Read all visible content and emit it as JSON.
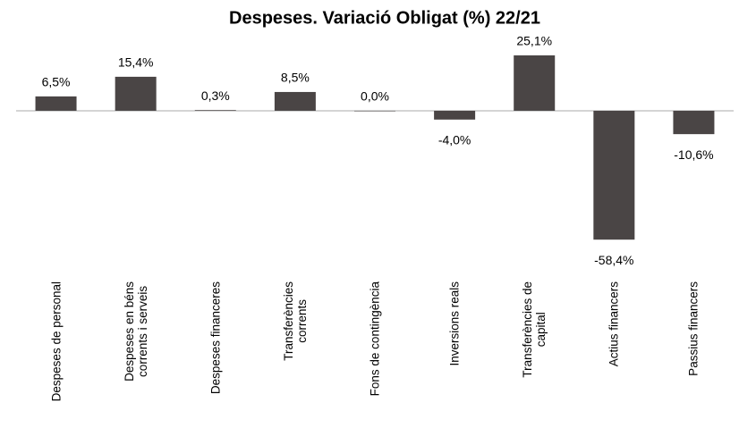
{
  "chart_data": {
    "type": "bar",
    "title": "Despeses. Variació Obligat (%)  22/21",
    "categories": [
      "Despeses de personal",
      "Despeses en béns\ncorrents i serveis",
      "Despeses financeres",
      "Transferències\ncorrents",
      "Fons de contingència",
      "Inversions reals",
      "Transferències de\ncapital",
      "Actius financers",
      "Passius financers"
    ],
    "values": [
      6.5,
      15.4,
      0.3,
      8.5,
      0.0,
      -4.0,
      25.1,
      -58.4,
      -10.6
    ],
    "value_labels": [
      "6,5%",
      "15,4%",
      "0,3%",
      "8,5%",
      "0,0%",
      "-4,0%",
      "25,1%",
      "-58,4%",
      "-10,6%"
    ],
    "color": "#4a4545",
    "ylim": [
      -65,
      35
    ]
  }
}
